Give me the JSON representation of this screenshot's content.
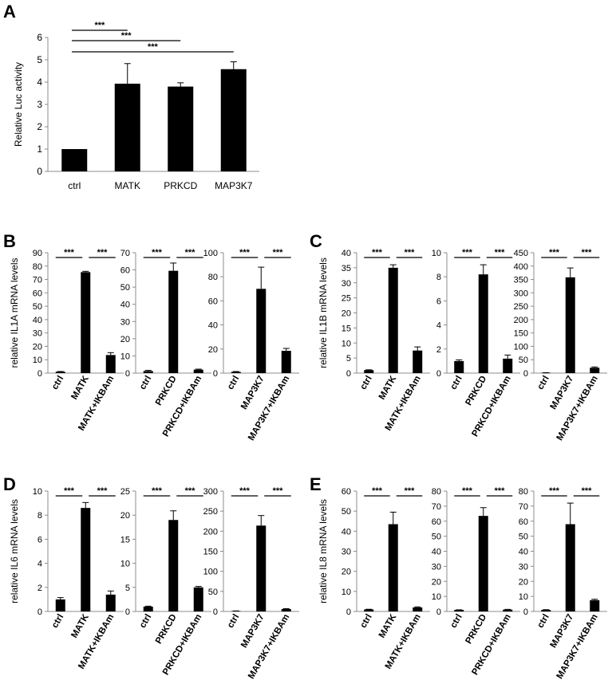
{
  "panel_letters": [
    "A",
    "B",
    "C",
    "D",
    "E"
  ],
  "chart_data": [
    {
      "id": "A",
      "type": "bar",
      "ylabel": "Relative Luc activity",
      "categories": [
        "ctrl",
        "MATK",
        "PRKCD",
        "MAP3K7"
      ],
      "values": [
        1.0,
        3.93,
        3.8,
        4.58
      ],
      "errors": [
        0.0,
        0.9,
        0.17,
        0.33
      ],
      "ylim": [
        0,
        6
      ],
      "yticks": [
        "0",
        "1",
        "2",
        "3",
        "4",
        "5",
        "6"
      ],
      "significance": [
        {
          "from": 0,
          "to": 1,
          "label": "***"
        },
        {
          "from": 0,
          "to": 2,
          "label": "***"
        },
        {
          "from": 0,
          "to": 3,
          "label": "***"
        }
      ]
    },
    {
      "id": "B1",
      "type": "bar",
      "ylabel": "relative IL1A mRNA levels",
      "categories": [
        "ctrl",
        "MATK",
        "MATK+IKBAm"
      ],
      "values": [
        1.0,
        75.5,
        13.5
      ],
      "errors": [
        0.2,
        0.6,
        1.8
      ],
      "ylim": [
        0,
        90
      ],
      "yticks": [
        "0",
        "10",
        "20",
        "30",
        "40",
        "50",
        "60",
        "70",
        "80",
        "90"
      ],
      "significance": [
        {
          "from": 0,
          "to": 1,
          "label": "***"
        },
        {
          "from": 1,
          "to": 2,
          "label": "***"
        }
      ]
    },
    {
      "id": "B2",
      "type": "bar",
      "ylabel": "",
      "categories": [
        "ctrl",
        "PRKCD",
        "PRKCD+IKBAm"
      ],
      "values": [
        1.2,
        59.5,
        2.0
      ],
      "errors": [
        0.4,
        4.5,
        0.3
      ],
      "ylim": [
        0,
        70
      ],
      "yticks": [
        "0",
        "10",
        "20",
        "30",
        "40",
        "50",
        "60",
        "70"
      ],
      "significance": [
        {
          "from": 0,
          "to": 1,
          "label": "***"
        },
        {
          "from": 1,
          "to": 2,
          "label": "***"
        }
      ]
    },
    {
      "id": "B3",
      "type": "bar",
      "ylabel": "",
      "categories": [
        "ctrl",
        "MAP3K7",
        "MAP3K7+IKBAm"
      ],
      "values": [
        1.0,
        70.0,
        18.5
      ],
      "errors": [
        0.3,
        18.0,
        2.0
      ],
      "ylim": [
        0,
        100
      ],
      "yticks": [
        "0",
        "20",
        "40",
        "60",
        "80",
        "100"
      ],
      "significance": [
        {
          "from": 0,
          "to": 1,
          "label": "***"
        },
        {
          "from": 1,
          "to": 2,
          "label": "***"
        }
      ]
    },
    {
      "id": "C1",
      "type": "bar",
      "ylabel": "relative IL1B mRNA levels",
      "categories": [
        "ctrl",
        "MATK",
        "MATK+IKBAm"
      ],
      "values": [
        1.0,
        35.0,
        7.5
      ],
      "errors": [
        0.1,
        1.0,
        1.2
      ],
      "ylim": [
        0,
        40
      ],
      "yticks": [
        "0",
        "5",
        "10",
        "15",
        "20",
        "25",
        "30",
        "35",
        "40"
      ],
      "significance": [
        {
          "from": 0,
          "to": 1,
          "label": "***"
        },
        {
          "from": 1,
          "to": 2,
          "label": "***"
        }
      ]
    },
    {
      "id": "C2",
      "type": "bar",
      "ylabel": "",
      "categories": [
        "ctrl",
        "PRKCD",
        "PRKCD+IKBAm"
      ],
      "values": [
        1.0,
        8.2,
        1.2
      ],
      "errors": [
        0.1,
        0.8,
        0.3
      ],
      "ylim": [
        0,
        10
      ],
      "yticks": [
        "0",
        "2",
        "4",
        "6",
        "8",
        "10"
      ],
      "significance": [
        {
          "from": 0,
          "to": 1,
          "label": "***"
        },
        {
          "from": 1,
          "to": 2,
          "label": "***"
        }
      ]
    },
    {
      "id": "C3",
      "type": "bar",
      "ylabel": "",
      "categories": [
        "ctrl",
        "MAP3K7",
        "MAP3K7+IKBAm"
      ],
      "values": [
        1.0,
        358.0,
        20.0
      ],
      "errors": [
        0.5,
        35.0,
        3.0
      ],
      "ylim": [
        0,
        450
      ],
      "yticks": [
        "0",
        "50",
        "100",
        "150",
        "200",
        "250",
        "300",
        "350",
        "400",
        "450"
      ],
      "significance": [
        {
          "from": 0,
          "to": 1,
          "label": "***"
        },
        {
          "from": 1,
          "to": 2,
          "label": "***"
        }
      ]
    },
    {
      "id": "D1",
      "type": "bar",
      "ylabel": "relative  IL6 mRNA levels",
      "categories": [
        "ctrl",
        "MATK",
        "MATK+IKBAm"
      ],
      "values": [
        1.0,
        8.6,
        1.4
      ],
      "errors": [
        0.15,
        0.45,
        0.3
      ],
      "ylim": [
        0,
        10
      ],
      "yticks": [
        "0",
        "2",
        "4",
        "6",
        "8",
        "10"
      ],
      "significance": [
        {
          "from": 0,
          "to": 1,
          "label": "***"
        },
        {
          "from": 1,
          "to": 2,
          "label": "***"
        }
      ]
    },
    {
      "id": "D2",
      "type": "bar",
      "ylabel": "",
      "categories": [
        "ctrl",
        "PRKCD",
        "PRKCD+IKBAm"
      ],
      "values": [
        1.0,
        19.0,
        5.0
      ],
      "errors": [
        0.1,
        1.9,
        0.2
      ],
      "ylim": [
        0,
        25
      ],
      "yticks": [
        "0",
        "5",
        "10",
        "15",
        "20",
        "25"
      ],
      "significance": [
        {
          "from": 0,
          "to": 1,
          "label": "***"
        },
        {
          "from": 1,
          "to": 2,
          "label": "***"
        }
      ]
    },
    {
      "id": "D3",
      "type": "bar",
      "ylabel": "",
      "categories": [
        "ctrl",
        "MAP3K7",
        "MAP3K7+IKBAm"
      ],
      "values": [
        1.0,
        214.0,
        6.0
      ],
      "errors": [
        0.3,
        25.0,
        1.0
      ],
      "ylim": [
        0,
        300
      ],
      "yticks": [
        "0",
        "50",
        "100",
        "150",
        "200",
        "250",
        "300"
      ],
      "significance": [
        {
          "from": 0,
          "to": 1,
          "label": "***"
        },
        {
          "from": 1,
          "to": 2,
          "label": "***"
        }
      ]
    },
    {
      "id": "E1",
      "type": "bar",
      "ylabel": "relative IL8 mRNA levels",
      "categories": [
        "ctrl",
        "MATK",
        "MATK+IKBAm"
      ],
      "values": [
        1.0,
        43.5,
        2.0
      ],
      "errors": [
        0.1,
        6.0,
        0.3
      ],
      "ylim": [
        0,
        60
      ],
      "yticks": [
        "0",
        "10",
        "20",
        "30",
        "40",
        "50",
        "60"
      ],
      "significance": [
        {
          "from": 0,
          "to": 1,
          "label": "***"
        },
        {
          "from": 1,
          "to": 2,
          "label": "***"
        }
      ]
    },
    {
      "id": "E2",
      "type": "bar",
      "ylabel": "",
      "categories": [
        "ctrl",
        "PRKCD",
        "PRKCD+IKBAm"
      ],
      "values": [
        1.0,
        63.5,
        1.2
      ],
      "errors": [
        0.1,
        5.5,
        0.2
      ],
      "ylim": [
        0,
        80
      ],
      "yticks": [
        "0",
        "10",
        "20",
        "30",
        "40",
        "50",
        "60",
        "70",
        "80"
      ],
      "significance": [
        {
          "from": 0,
          "to": 1,
          "label": "***"
        },
        {
          "from": 1,
          "to": 2,
          "label": "***"
        }
      ]
    },
    {
      "id": "E3",
      "type": "bar",
      "ylabel": "",
      "categories": [
        "ctrl",
        "MAP3K7",
        "MAP3K7+IKBAm"
      ],
      "values": [
        1.0,
        58.0,
        7.5
      ],
      "errors": [
        0.2,
        14.0,
        0.6
      ],
      "ylim": [
        0,
        80
      ],
      "yticks": [
        "0",
        "10",
        "20",
        "30",
        "40",
        "50",
        "60",
        "70",
        "80"
      ],
      "significance": [
        {
          "from": 0,
          "to": 1,
          "label": "***"
        },
        {
          "from": 1,
          "to": 2,
          "label": "***"
        }
      ]
    }
  ]
}
